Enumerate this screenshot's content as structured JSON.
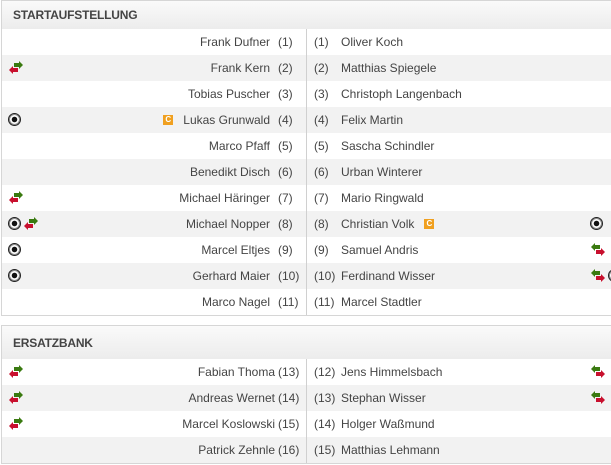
{
  "lineup": {
    "title": "STARTAUFSTELLUNG",
    "rows": [
      {
        "home": {
          "name": "Frank Dufner",
          "num": "(1)",
          "icons": []
        },
        "away": {
          "name": "Oliver Koch",
          "num": "(1)",
          "icons": []
        }
      },
      {
        "home": {
          "name": "Frank Kern",
          "num": "(2)",
          "icons": [
            "substitution-out-icon"
          ]
        },
        "away": {
          "name": "Matthias Spiegele",
          "num": "(2)",
          "icons": []
        }
      },
      {
        "home": {
          "name": "Tobias Puscher",
          "num": "(3)",
          "icons": []
        },
        "away": {
          "name": "Christoph Langenbach",
          "num": "(3)",
          "icons": []
        }
      },
      {
        "home": {
          "name": "Lukas Grunwald",
          "num": "(4)",
          "icons": [
            "goal-icon"
          ],
          "captain": "C"
        },
        "away": {
          "name": "Felix Martin",
          "num": "(4)",
          "icons": []
        }
      },
      {
        "home": {
          "name": "Marco Pfaff",
          "num": "(5)",
          "icons": []
        },
        "away": {
          "name": "Sascha Schindler",
          "num": "(5)",
          "icons": []
        }
      },
      {
        "home": {
          "name": "Benedikt Disch",
          "num": "(6)",
          "icons": []
        },
        "away": {
          "name": "Urban Winterer",
          "num": "(6)",
          "icons": []
        }
      },
      {
        "home": {
          "name": "Michael Häringer",
          "num": "(7)",
          "icons": [
            "substitution-out-icon"
          ]
        },
        "away": {
          "name": "Mario Ringwald",
          "num": "(7)",
          "icons": []
        }
      },
      {
        "home": {
          "name": "Michael Nopper",
          "num": "(8)",
          "icons": [
            "goal-icon",
            "substitution-out-icon"
          ]
        },
        "away": {
          "name": "Christian Volk",
          "num": "(8)",
          "icons": [
            "goal-icon"
          ],
          "captain": "C"
        }
      },
      {
        "home": {
          "name": "Marcel Eltjes",
          "num": "(9)",
          "icons": [
            "goal-icon"
          ]
        },
        "away": {
          "name": "Samuel Andris",
          "num": "(9)",
          "icons": [
            "substitution-in-icon"
          ]
        }
      },
      {
        "home": {
          "name": "Gerhard Maier",
          "num": "(10)",
          "icons": [
            "goal-icon"
          ]
        },
        "away": {
          "name": "Ferdinand Wisser",
          "num": "(10)",
          "icons": [
            "substitution-in-icon",
            "goal-icon"
          ]
        }
      },
      {
        "home": {
          "name": "Marco Nagel",
          "num": "(11)",
          "icons": []
        },
        "away": {
          "name": "Marcel Stadtler",
          "num": "(11)",
          "icons": []
        }
      }
    ]
  },
  "bench": {
    "title": "ERSATZBANK",
    "rows": [
      {
        "home": {
          "name": "Fabian Thoma",
          "num": "(13)",
          "icons": [
            "substitution-out-icon"
          ]
        },
        "away": {
          "name": "Jens Himmelsbach",
          "num": "(12)",
          "icons": [
            "substitution-in-icon"
          ]
        }
      },
      {
        "home": {
          "name": "Andreas Wernet",
          "num": "(14)",
          "icons": [
            "substitution-out-icon"
          ]
        },
        "away": {
          "name": "Stephan Wisser",
          "num": "(13)",
          "icons": [
            "substitution-in-icon"
          ]
        }
      },
      {
        "home": {
          "name": "Marcel Koslowski",
          "num": "(15)",
          "icons": [
            "substitution-out-icon"
          ]
        },
        "away": {
          "name": "Holger Waßmund",
          "num": "(14)",
          "icons": []
        }
      },
      {
        "home": {
          "name": "Patrick Zehnle",
          "num": "(16)",
          "icons": []
        },
        "away": {
          "name": "Matthias Lehmann",
          "num": "(15)",
          "icons": []
        }
      }
    ]
  },
  "colors": {
    "sub_green": "#3a7a10",
    "sub_red": "#c8102e",
    "captain": "#f0a020"
  }
}
